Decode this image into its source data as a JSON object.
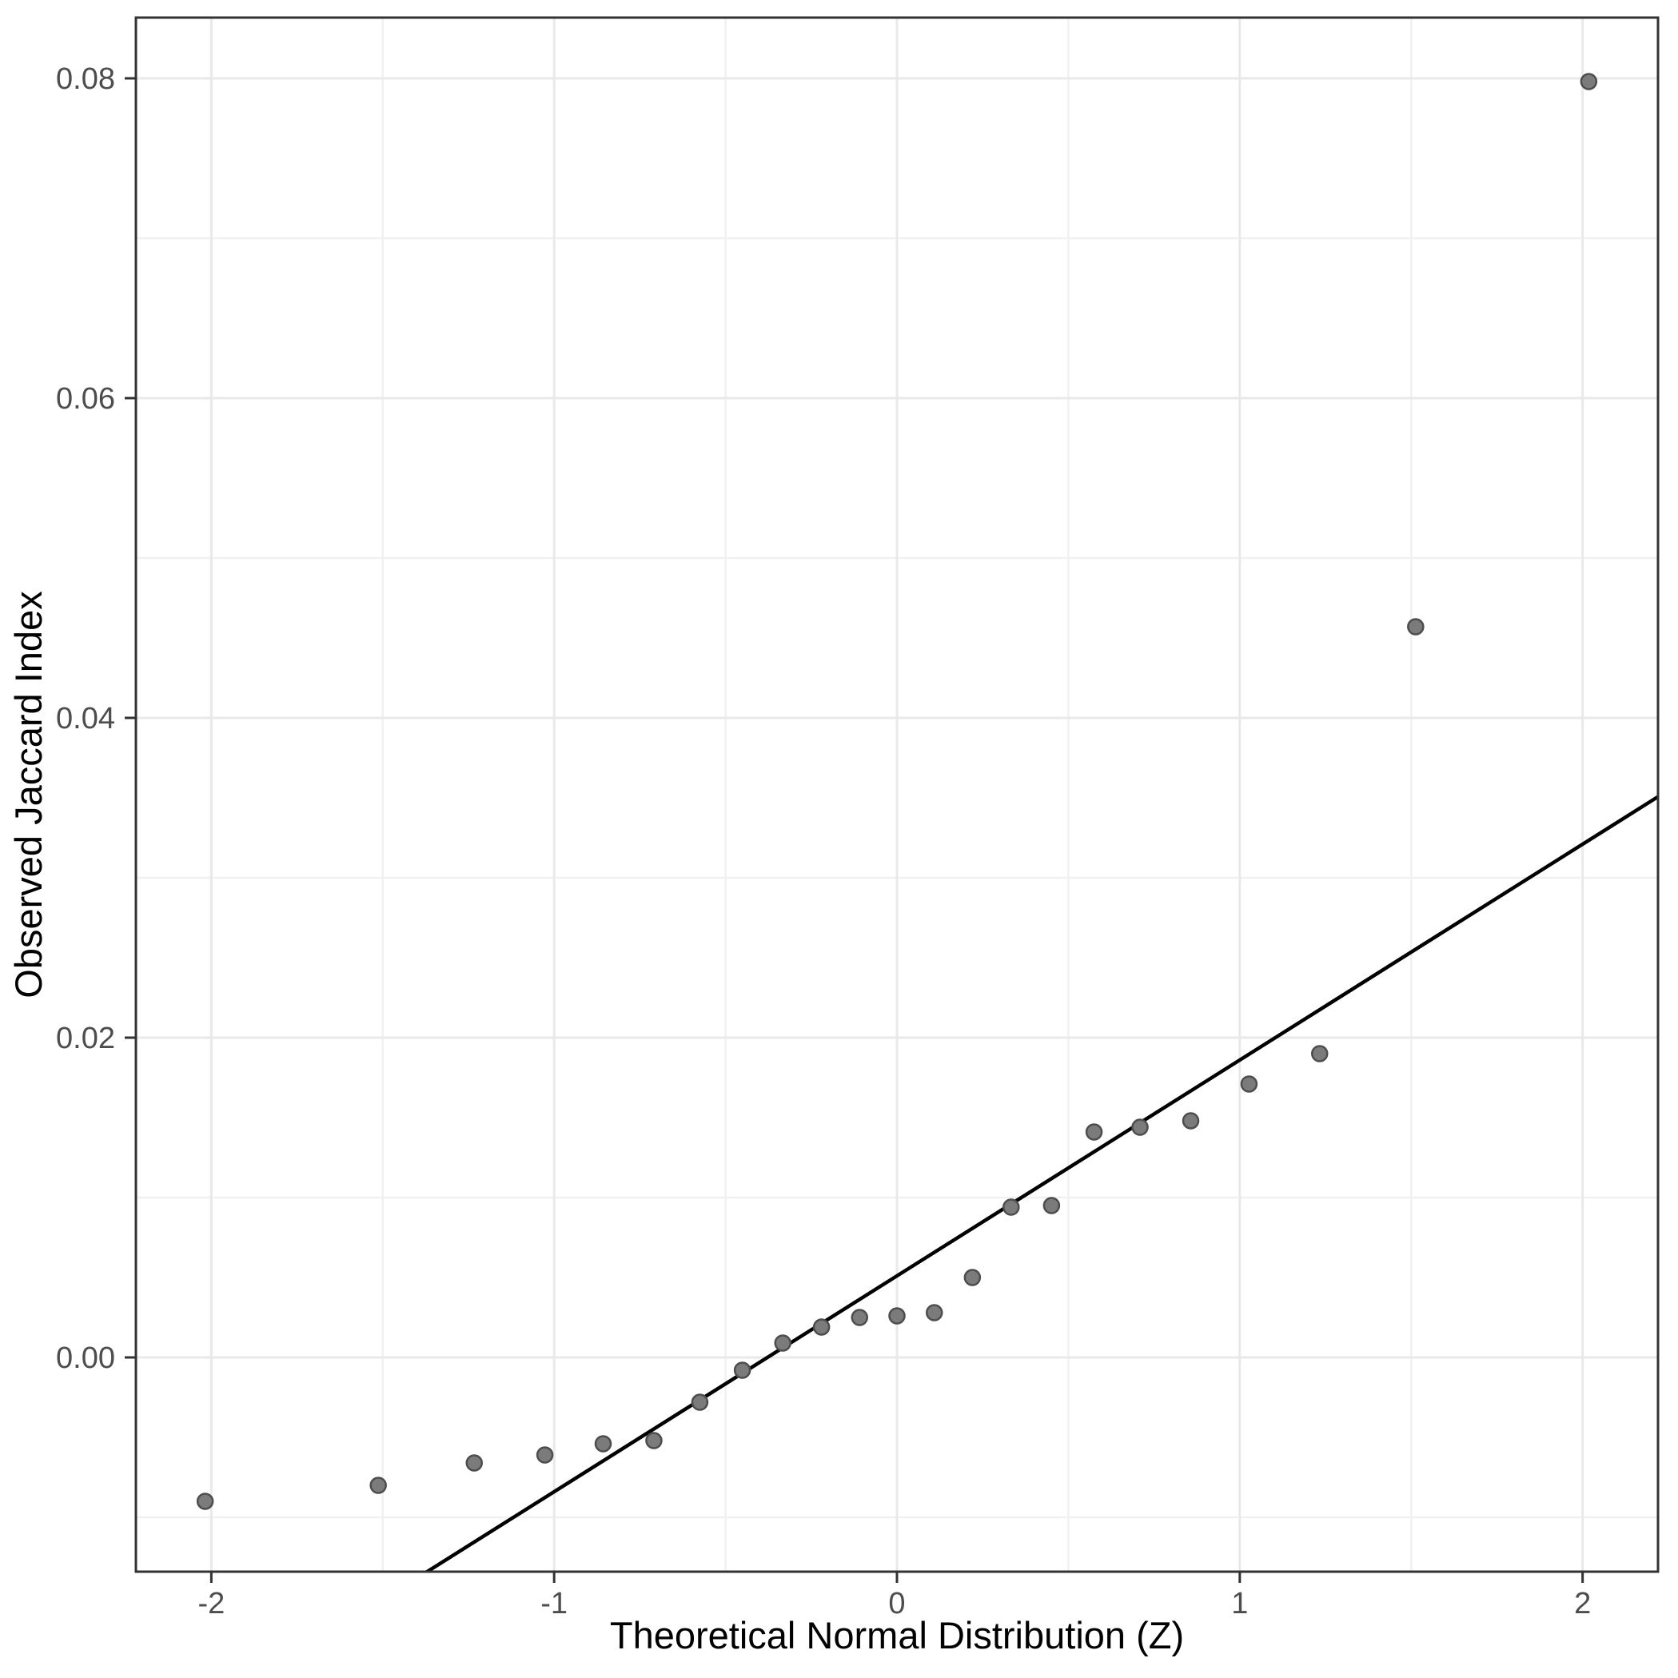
{
  "figure": {
    "background_color": "#ffffff",
    "panel_background_color": "#ffffff",
    "panel_border_color": "#333333",
    "grid_major_color": "#e9e9e9",
    "grid_minor_color": "#f1f1f1",
    "tick_color": "#333333",
    "tick_label_color": "#4d4d4d",
    "point_fill_color": "#7b7b7b",
    "point_stroke_color": "#4d4d4d",
    "line_color": "#000000"
  },
  "axes": {
    "x": {
      "title": "Theoretical Normal Distribution (Z)",
      "tick_labels": [
        "-2",
        "-1",
        "0",
        "1",
        "2"
      ],
      "tick_values": [
        -2,
        -1,
        0,
        1,
        2
      ],
      "minor_tick_values": [
        -1.5,
        -0.5,
        0.5,
        1.5
      ],
      "domain": [
        -2.22,
        2.22
      ]
    },
    "y": {
      "title": "Observed Jaccard Index",
      "tick_labels": [
        "0.00",
        "0.02",
        "0.04",
        "0.06",
        "0.08"
      ],
      "tick_values": [
        0,
        0.02,
        0.04,
        0.06,
        0.08
      ],
      "minor_tick_values": [
        -0.01,
        0.01,
        0.03,
        0.05,
        0.07
      ],
      "domain": [
        -0.0134,
        0.0838
      ]
    }
  },
  "chart_data": {
    "type": "scatter",
    "title": "",
    "xlabel": "Theoretical Normal Distribution (Z)",
    "ylabel": "Observed Jaccard Index",
    "xlim": [
      -2.22,
      2.22
    ],
    "ylim": [
      -0.0134,
      0.0838
    ],
    "grid": "on",
    "legend": "none",
    "series": [
      {
        "name": "sample-quantiles",
        "marker": "circle",
        "points": [
          [
            -2.018,
            -0.009
          ],
          [
            -1.513,
            -0.008
          ],
          [
            -1.233,
            -0.0066
          ],
          [
            -1.027,
            -0.0061
          ],
          [
            -0.857,
            -0.0054
          ],
          [
            -0.709,
            -0.0052
          ],
          [
            -0.575,
            -0.0028
          ],
          [
            -0.451,
            -0.0008
          ],
          [
            -0.333,
            0.0009
          ],
          [
            -0.22,
            0.0019
          ],
          [
            -0.109,
            0.0025
          ],
          [
            0.0,
            0.0026
          ],
          [
            0.109,
            0.0028
          ],
          [
            0.22,
            0.005
          ],
          [
            0.333,
            0.0094
          ],
          [
            0.451,
            0.0095
          ],
          [
            0.575,
            0.0141
          ],
          [
            0.709,
            0.0144
          ],
          [
            0.857,
            0.0148
          ],
          [
            1.027,
            0.0171
          ],
          [
            1.233,
            0.019
          ],
          [
            1.513,
            0.0457
          ],
          [
            2.018,
            0.0798
          ]
        ]
      }
    ],
    "reference_line": {
      "type": "qqline",
      "slope": 0.0135,
      "intercept": 0.0051
    }
  }
}
